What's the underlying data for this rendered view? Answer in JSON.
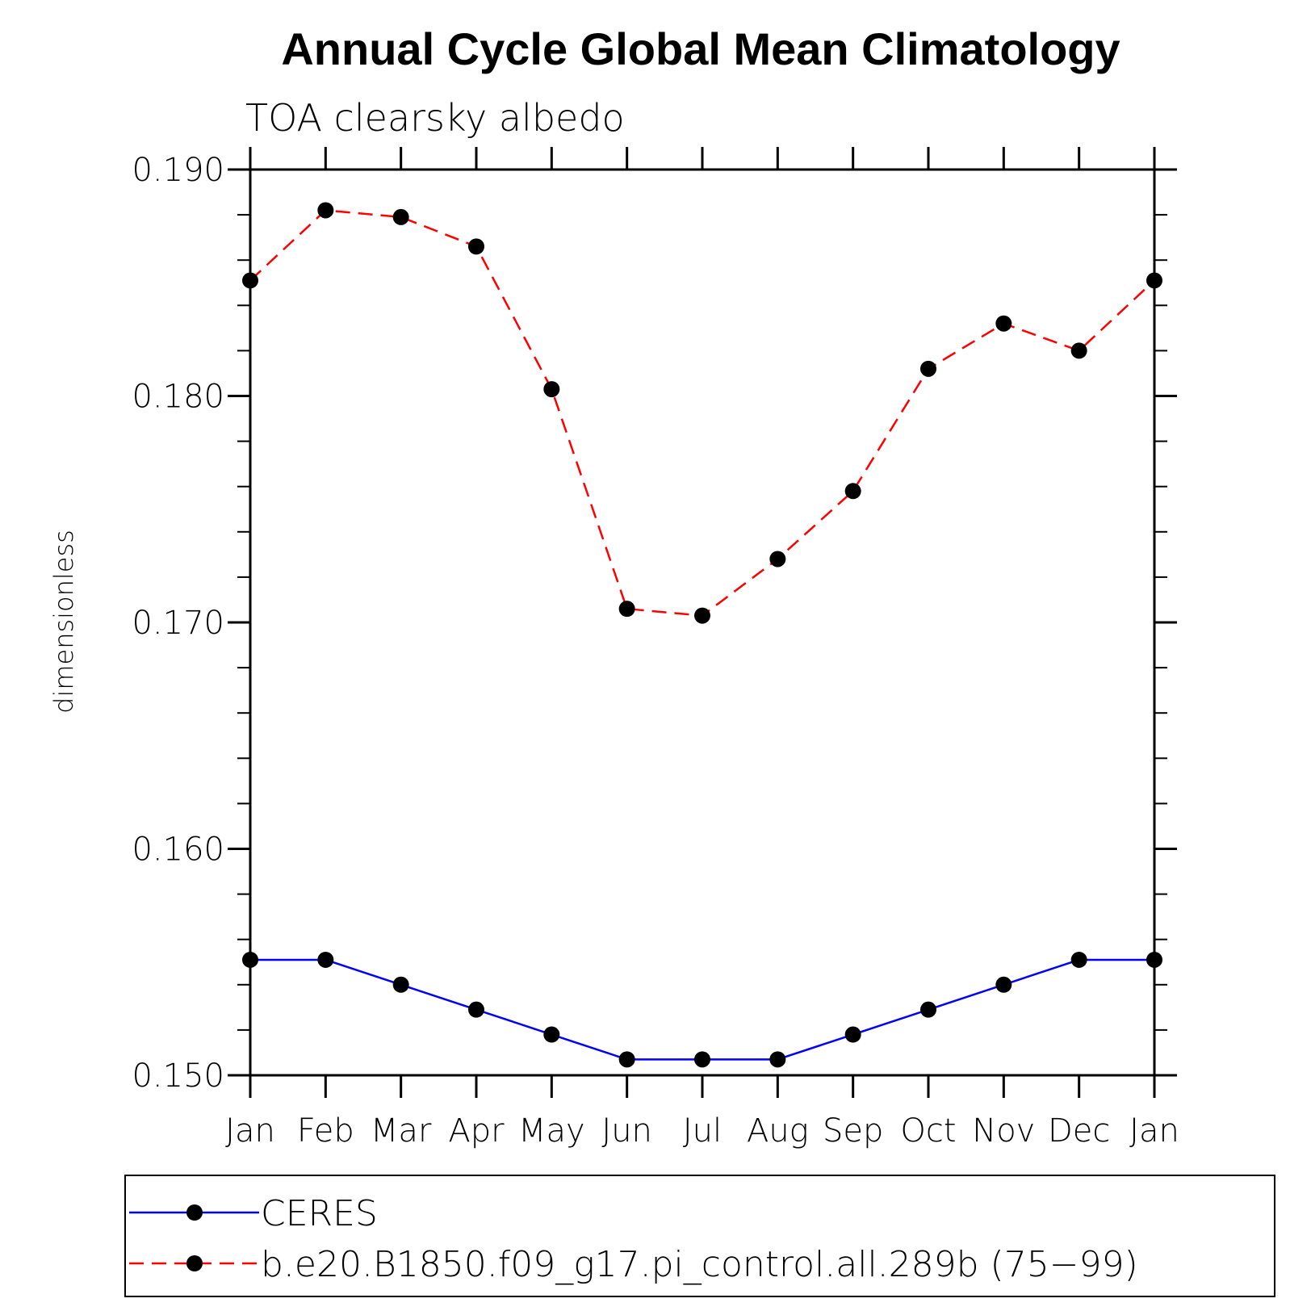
{
  "chart_data": {
    "type": "line",
    "title": "Annual Cycle Global Mean Climatology",
    "subtitle": "TOA clearsky albedo",
    "xlabel": "",
    "ylabel": "dimensionless",
    "categories": [
      "Jan",
      "Feb",
      "Mar",
      "Apr",
      "May",
      "Jun",
      "Jul",
      "Aug",
      "Sep",
      "Oct",
      "Nov",
      "Dec",
      "Jan"
    ],
    "ylim": [
      0.15,
      0.19
    ],
    "yticks": [
      "0.150",
      "0.160",
      "0.170",
      "0.180",
      "0.190"
    ],
    "ytick_values": [
      0.15,
      0.16,
      0.17,
      0.18,
      0.19
    ],
    "legend_position": "bottom",
    "series": [
      {
        "name": "CERES",
        "color": "#0000ff",
        "line_style": "solid",
        "marker": "filled-circle",
        "values": [
          0.1551,
          0.1551,
          0.154,
          0.1529,
          0.1518,
          0.1507,
          0.1507,
          0.1507,
          0.1518,
          0.1529,
          0.154,
          0.1551,
          0.1551
        ]
      },
      {
        "name": "b.e20.B1850.f09_g17.pi_control.all.289b (75−99)",
        "color": "#ff0000",
        "line_style": "dashed",
        "marker": "filled-circle",
        "values": [
          0.1851,
          0.1882,
          0.1879,
          0.1866,
          0.1803,
          0.1706,
          0.1703,
          0.1728,
          0.1758,
          0.1812,
          0.1832,
          0.182,
          0.1851
        ]
      }
    ]
  }
}
